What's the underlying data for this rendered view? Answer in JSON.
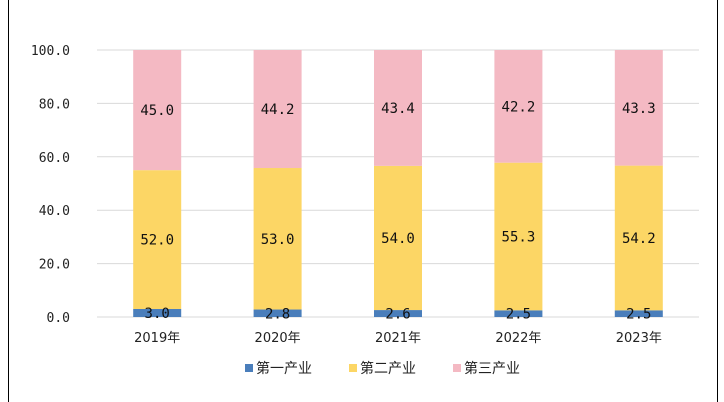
{
  "chart_data": {
    "type": "bar",
    "stacked": true,
    "categories": [
      "2019年",
      "2020年",
      "2021年",
      "2022年",
      "2023年"
    ],
    "series": [
      {
        "name": "第一产业",
        "color": "#4a7ebb",
        "values": [
          3.0,
          2.8,
          2.6,
          2.5,
          2.5
        ],
        "labels": [
          "3.0",
          "2.8",
          "2.6",
          "2.5",
          "2.5"
        ]
      },
      {
        "name": "第二产业",
        "color": "#fcd665",
        "values": [
          52.0,
          53.0,
          54.0,
          55.3,
          54.2
        ],
        "labels": [
          "52.0",
          "53.0",
          "54.0",
          "55.3",
          "54.2"
        ]
      },
      {
        "name": "第三产业",
        "color": "#f4b9c3",
        "values": [
          45.0,
          44.2,
          43.4,
          42.2,
          43.3
        ],
        "labels": [
          "45.0",
          "44.2",
          "43.4",
          "42.2",
          "43.3"
        ]
      }
    ],
    "yticks": [
      "0.0",
      "20.0",
      "40.0",
      "60.0",
      "80.0",
      "100.0"
    ],
    "ylim": [
      0,
      100
    ],
    "grid": true,
    "legend": "bottom"
  }
}
